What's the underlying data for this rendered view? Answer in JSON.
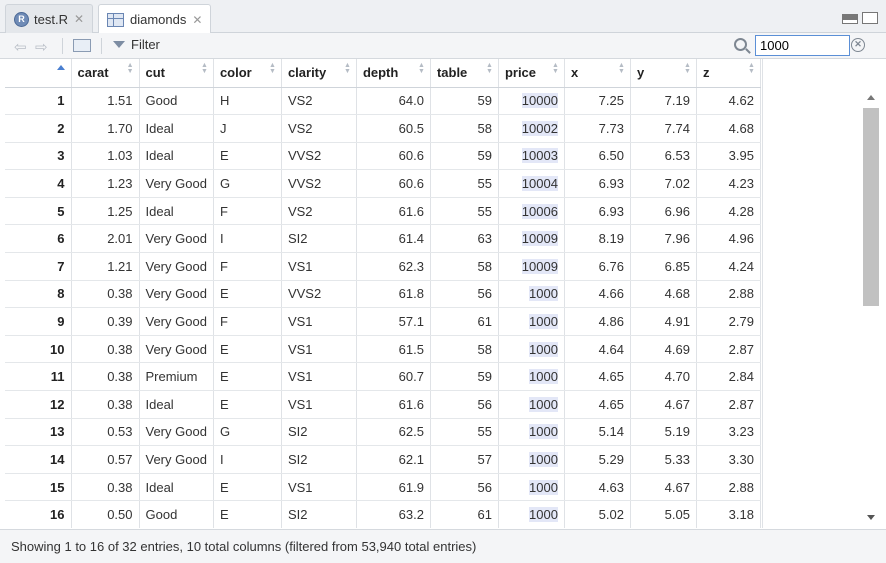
{
  "tabs": [
    {
      "label": "test.R",
      "icon": "r-file-icon"
    },
    {
      "label": "diamonds",
      "icon": "data-grid-icon"
    }
  ],
  "toolbar": {
    "filter_label": "Filter",
    "search_value": "1000"
  },
  "columns": [
    "",
    "carat",
    "cut",
    "color",
    "clarity",
    "depth",
    "table",
    "price",
    "x",
    "y",
    "z"
  ],
  "rows": [
    {
      "idx": "1",
      "carat": "1.51",
      "cut": "Good",
      "color": "H",
      "clarity": "VS2",
      "depth": "64.0",
      "table": "59",
      "price": "10000",
      "x": "7.25",
      "y": "7.19",
      "z": "4.62"
    },
    {
      "idx": "2",
      "carat": "1.70",
      "cut": "Ideal",
      "color": "J",
      "clarity": "VS2",
      "depth": "60.5",
      "table": "58",
      "price": "10002",
      "x": "7.73",
      "y": "7.74",
      "z": "4.68"
    },
    {
      "idx": "3",
      "carat": "1.03",
      "cut": "Ideal",
      "color": "E",
      "clarity": "VVS2",
      "depth": "60.6",
      "table": "59",
      "price": "10003",
      "x": "6.50",
      "y": "6.53",
      "z": "3.95"
    },
    {
      "idx": "4",
      "carat": "1.23",
      "cut": "Very Good",
      "color": "G",
      "clarity": "VVS2",
      "depth": "60.6",
      "table": "55",
      "price": "10004",
      "x": "6.93",
      "y": "7.02",
      "z": "4.23"
    },
    {
      "idx": "5",
      "carat": "1.25",
      "cut": "Ideal",
      "color": "F",
      "clarity": "VS2",
      "depth": "61.6",
      "table": "55",
      "price": "10006",
      "x": "6.93",
      "y": "6.96",
      "z": "4.28"
    },
    {
      "idx": "6",
      "carat": "2.01",
      "cut": "Very Good",
      "color": "I",
      "clarity": "SI2",
      "depth": "61.4",
      "table": "63",
      "price": "10009",
      "x": "8.19",
      "y": "7.96",
      "z": "4.96"
    },
    {
      "idx": "7",
      "carat": "1.21",
      "cut": "Very Good",
      "color": "F",
      "clarity": "VS1",
      "depth": "62.3",
      "table": "58",
      "price": "10009",
      "x": "6.76",
      "y": "6.85",
      "z": "4.24"
    },
    {
      "idx": "8",
      "carat": "0.38",
      "cut": "Very Good",
      "color": "E",
      "clarity": "VVS2",
      "depth": "61.8",
      "table": "56",
      "price": "1000",
      "x": "4.66",
      "y": "4.68",
      "z": "2.88"
    },
    {
      "idx": "9",
      "carat": "0.39",
      "cut": "Very Good",
      "color": "F",
      "clarity": "VS1",
      "depth": "57.1",
      "table": "61",
      "price": "1000",
      "x": "4.86",
      "y": "4.91",
      "z": "2.79"
    },
    {
      "idx": "10",
      "carat": "0.38",
      "cut": "Very Good",
      "color": "E",
      "clarity": "VS1",
      "depth": "61.5",
      "table": "58",
      "price": "1000",
      "x": "4.64",
      "y": "4.69",
      "z": "2.87"
    },
    {
      "idx": "11",
      "carat": "0.38",
      "cut": "Premium",
      "color": "E",
      "clarity": "VS1",
      "depth": "60.7",
      "table": "59",
      "price": "1000",
      "x": "4.65",
      "y": "4.70",
      "z": "2.84"
    },
    {
      "idx": "12",
      "carat": "0.38",
      "cut": "Ideal",
      "color": "E",
      "clarity": "VS1",
      "depth": "61.6",
      "table": "56",
      "price": "1000",
      "x": "4.65",
      "y": "4.67",
      "z": "2.87"
    },
    {
      "idx": "13",
      "carat": "0.53",
      "cut": "Very Good",
      "color": "G",
      "clarity": "SI2",
      "depth": "62.5",
      "table": "55",
      "price": "1000",
      "x": "5.14",
      "y": "5.19",
      "z": "3.23"
    },
    {
      "idx": "14",
      "carat": "0.57",
      "cut": "Very Good",
      "color": "I",
      "clarity": "SI2",
      "depth": "62.1",
      "table": "57",
      "price": "1000",
      "x": "5.29",
      "y": "5.33",
      "z": "3.30"
    },
    {
      "idx": "15",
      "carat": "0.38",
      "cut": "Ideal",
      "color": "E",
      "clarity": "VS1",
      "depth": "61.9",
      "table": "56",
      "price": "1000",
      "x": "4.63",
      "y": "4.67",
      "z": "2.88"
    },
    {
      "idx": "16",
      "carat": "0.50",
      "cut": "Good",
      "color": "E",
      "clarity": "SI2",
      "depth": "63.2",
      "table": "61",
      "price": "1000",
      "x": "5.02",
      "y": "5.05",
      "z": "3.18"
    }
  ],
  "status": "Showing 1 to 16 of 32 entries, 10 total columns (filtered from 53,940 total entries)",
  "colors": {
    "search_highlight": "#e3e7f7",
    "sort_indicator": "#4a7fd0",
    "search_border": "#5b8fd6"
  }
}
